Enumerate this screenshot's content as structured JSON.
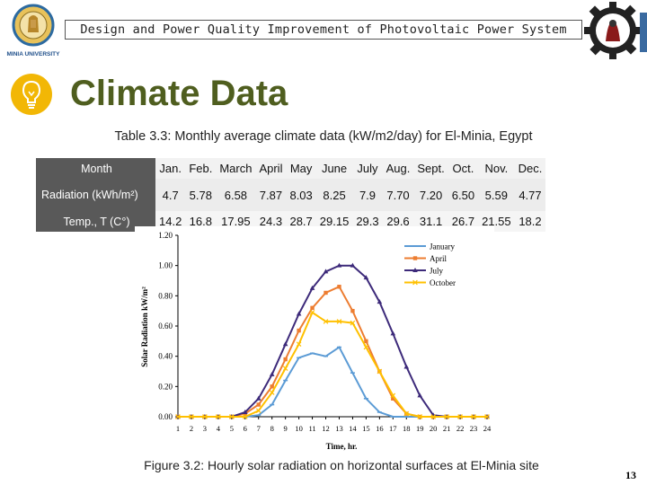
{
  "header": {
    "banner_text": "Design and Power Quality Improvement of Photovoltaic Power System",
    "left_logo_text": "MINIA UNIVERSITY"
  },
  "slide": {
    "title": "Climate Data",
    "page_number": "13"
  },
  "table": {
    "caption": "Table 3.3: Monthly average climate data (kW/m2/day) for El-Minia, Egypt",
    "header_label": "Month",
    "months": [
      "Jan.",
      "Feb.",
      "March",
      "April",
      "May",
      "June",
      "July",
      "Aug.",
      "Sept.",
      "Oct.",
      "Nov.",
      "Dec."
    ],
    "radiation_label": "Radiation (kWh/m²)",
    "radiation": [
      "4.7",
      "5.78",
      "6.58",
      "7.87",
      "8.03",
      "8.25",
      "7.9",
      "7.70",
      "7.20",
      "6.50",
      "5.59",
      "4.77"
    ],
    "temperature_label": "Temp., T (C°)",
    "temperature": [
      "14.2",
      "16.8",
      "17.95",
      "24.3",
      "28.7",
      "29.15",
      "29.3",
      "29.6",
      "31.1",
      "26.7",
      "21.55",
      "18.2"
    ]
  },
  "figure": {
    "caption": "Figure 3.2: Hourly solar radiation on horizontal surfaces at El-Minia site"
  },
  "chart_data": {
    "type": "line",
    "title": "",
    "xlabel": "Time, hr.",
    "ylabel": "Solar Radiation kW/m²",
    "xlim": [
      1,
      24
    ],
    "ylim": [
      0,
      1.2
    ],
    "x": [
      1,
      2,
      3,
      4,
      5,
      6,
      7,
      8,
      9,
      10,
      11,
      12,
      13,
      14,
      15,
      16,
      17,
      18,
      19,
      20,
      21,
      22,
      23,
      24
    ],
    "x_ticks": [
      "1",
      "2",
      "3",
      "4",
      "5",
      "6",
      "7",
      "8",
      "9",
      "10",
      "11",
      "12",
      "13",
      "14",
      "15",
      "16",
      "17",
      "18",
      "19",
      "20",
      "21",
      "22",
      "23",
      "24"
    ],
    "y_ticks": [
      "0.00",
      "0.20",
      "0.40",
      "0.60",
      "0.80",
      "1.00",
      "1.20"
    ],
    "grid": false,
    "legend_position": "top-right",
    "series": [
      {
        "name": "January",
        "color": "#5b9bd5",
        "marker": "dash",
        "values": [
          0,
          0,
          0,
          0,
          0,
          0,
          0.01,
          0.08,
          0.24,
          0.39,
          0.42,
          0.4,
          0.46,
          0.29,
          0.12,
          0.03,
          0,
          0,
          0,
          0,
          0,
          0,
          0,
          0
        ]
      },
      {
        "name": "April",
        "color": "#ed7d31",
        "marker": "square",
        "values": [
          0,
          0,
          0,
          0,
          0,
          0.02,
          0.08,
          0.2,
          0.38,
          0.57,
          0.72,
          0.82,
          0.86,
          0.7,
          0.5,
          0.3,
          0.12,
          0.02,
          0,
          0,
          0,
          0,
          0,
          0
        ]
      },
      {
        "name": "July",
        "color": "#3d2a7a",
        "marker": "triangle",
        "values": [
          0,
          0,
          0,
          0,
          0,
          0.03,
          0.12,
          0.28,
          0.48,
          0.68,
          0.85,
          0.96,
          1.0,
          1.0,
          0.92,
          0.76,
          0.55,
          0.33,
          0.14,
          0.01,
          0,
          0,
          0,
          0
        ]
      },
      {
        "name": "October",
        "color": "#ffc000",
        "marker": "x",
        "values": [
          0,
          0,
          0,
          0,
          0,
          0,
          0.04,
          0.16,
          0.32,
          0.48,
          0.69,
          0.63,
          0.63,
          0.62,
          0.46,
          0.3,
          0.14,
          0.02,
          0,
          0,
          0,
          0,
          0,
          0
        ]
      }
    ]
  }
}
